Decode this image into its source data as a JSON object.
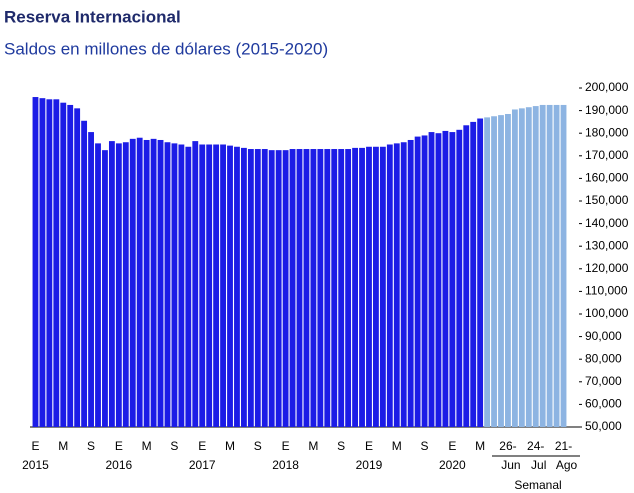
{
  "chart_data": {
    "type": "bar",
    "title": "Reserva Internacional",
    "subtitle": "Saldos en millones de dólares (2015-2020)",
    "categories": [
      "E",
      null,
      null,
      null,
      "M",
      null,
      null,
      null,
      "S",
      null,
      null,
      null,
      "E",
      null,
      null,
      null,
      "M",
      null,
      null,
      null,
      "S",
      null,
      null,
      null,
      "E",
      null,
      null,
      null,
      "M",
      null,
      null,
      null,
      "S",
      null,
      null,
      null,
      "E",
      null,
      null,
      null,
      "M",
      null,
      null,
      null,
      "S",
      null,
      null,
      null,
      "E",
      null,
      null,
      null,
      "M",
      null,
      null,
      null,
      "S",
      null,
      null,
      null,
      "E",
      null,
      null,
      null,
      "M",
      null,
      null,
      null,
      "26-",
      null,
      null,
      null,
      "24-",
      null,
      null,
      null,
      "21-"
    ],
    "years": [
      "2015",
      "2016",
      "2017",
      "2018",
      "2019",
      "2020"
    ],
    "week_months": [
      "Jun",
      "Jul",
      "Ago"
    ],
    "weekly_label": "Semanal",
    "series": [
      {
        "color": "#1c1ce6",
        "values": [
          196000,
          195500,
          195000,
          195000,
          193500,
          192500,
          191000,
          185500,
          180500,
          175500,
          172500,
          176500,
          175500,
          176000,
          177500,
          178000,
          177000,
          177500,
          177000,
          176000,
          175500,
          175000,
          174000,
          176500,
          175000,
          175000,
          175000,
          175000,
          174500,
          174000,
          173500,
          173000,
          173000,
          173000,
          172500,
          172500,
          172500,
          173000,
          173000,
          173000,
          173000,
          173000,
          173000,
          173000,
          173000,
          173000,
          173500,
          173500,
          174000,
          174000,
          174000,
          175000,
          175500,
          176000,
          177000,
          178500,
          179000,
          180500,
          180000,
          181000,
          180500,
          181500,
          183500,
          185000,
          186500,
          null,
          null,
          null,
          null,
          null,
          null,
          null,
          null,
          null,
          null,
          null,
          null
        ]
      },
      {
        "color": "#8db4e2",
        "values": [
          null,
          null,
          null,
          null,
          null,
          null,
          null,
          null,
          null,
          null,
          null,
          null,
          null,
          null,
          null,
          null,
          null,
          null,
          null,
          null,
          null,
          null,
          null,
          null,
          null,
          null,
          null,
          null,
          null,
          null,
          null,
          null,
          null,
          null,
          null,
          null,
          null,
          null,
          null,
          null,
          null,
          null,
          null,
          null,
          null,
          null,
          null,
          null,
          null,
          null,
          null,
          null,
          null,
          null,
          null,
          null,
          null,
          null,
          null,
          null,
          null,
          null,
          null,
          null,
          null,
          187000,
          187500,
          188000,
          188500,
          190500,
          191000,
          191500,
          192000,
          192500,
          192500,
          192500,
          192500
        ]
      }
    ],
    "ylim": [
      50000,
      200000
    ],
    "yticks": [
      {
        "value": 200000,
        "label": "200,000"
      },
      {
        "value": 190000,
        "label": "190,000"
      },
      {
        "value": 180000,
        "label": "180,000"
      },
      {
        "value": 170000,
        "label": "170,000"
      },
      {
        "value": 160000,
        "label": "160,000"
      },
      {
        "value": 150000,
        "label": "150,000"
      },
      {
        "value": 140000,
        "label": "140,000"
      },
      {
        "value": 130000,
        "label": "130,000"
      },
      {
        "value": 120000,
        "label": "120,000"
      },
      {
        "value": 110000,
        "label": "110,000"
      },
      {
        "value": 100000,
        "label": "100,000"
      },
      {
        "value": 90000,
        "label": "90,000"
      },
      {
        "value": 80000,
        "label": "80,000"
      },
      {
        "value": 70000,
        "label": "70,000"
      },
      {
        "value": 60000,
        "label": "60,000"
      },
      {
        "value": 50000,
        "label": "50,000"
      }
    ],
    "grid": false
  }
}
